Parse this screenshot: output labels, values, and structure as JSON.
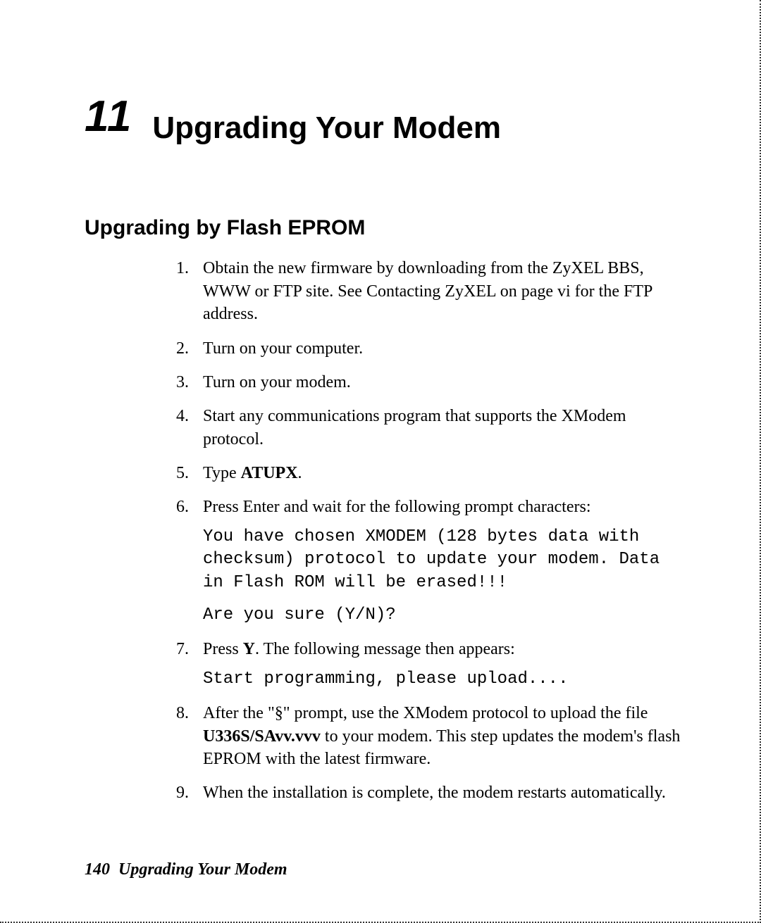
{
  "chapter": {
    "number": "11",
    "title": "Upgrading Your Modem"
  },
  "section": {
    "heading": "Upgrading by Flash EPROM"
  },
  "steps": {
    "s1": {
      "marker": "1.",
      "text": "Obtain the new firmware by downloading from the ZyXEL BBS, WWW or FTP site. See Contacting ZyXEL on page vi for the FTP address."
    },
    "s2": {
      "marker": "2.",
      "text": "Turn on your computer."
    },
    "s3": {
      "marker": "3.",
      "text": "Turn on your modem."
    },
    "s4": {
      "marker": "4.",
      "text": "Start any communications program that supports the XModem protocol."
    },
    "s5": {
      "marker": "5.",
      "pre": "Type ",
      "bold": "ATUPX",
      "post": "."
    },
    "s6": {
      "marker": "6.",
      "text": "Press Enter and wait for the following prompt characters:",
      "code1": "You have chosen XMODEM (128 bytes data with checksum) protocol to update your modem. Data in Flash ROM will be erased!!!",
      "code2": "Are you sure (Y/N)?"
    },
    "s7": {
      "marker": "7.",
      "pre": "Press ",
      "bold": "Y",
      "post": ". The following message then appears:",
      "code1": "Start programming, please upload...."
    },
    "s8": {
      "marker": "8.",
      "pre": "After the \"§\" prompt, use the XModem protocol to upload the file ",
      "bold": "U336S/SAvv.vvv",
      "post": " to your modem. This step updates the modem's flash EPROM with the latest firmware."
    },
    "s9": {
      "marker": "9.",
      "text": "When the installation is complete, the modem restarts automatically."
    }
  },
  "footer": {
    "page_number": "140",
    "title": "Upgrading Your Modem"
  }
}
